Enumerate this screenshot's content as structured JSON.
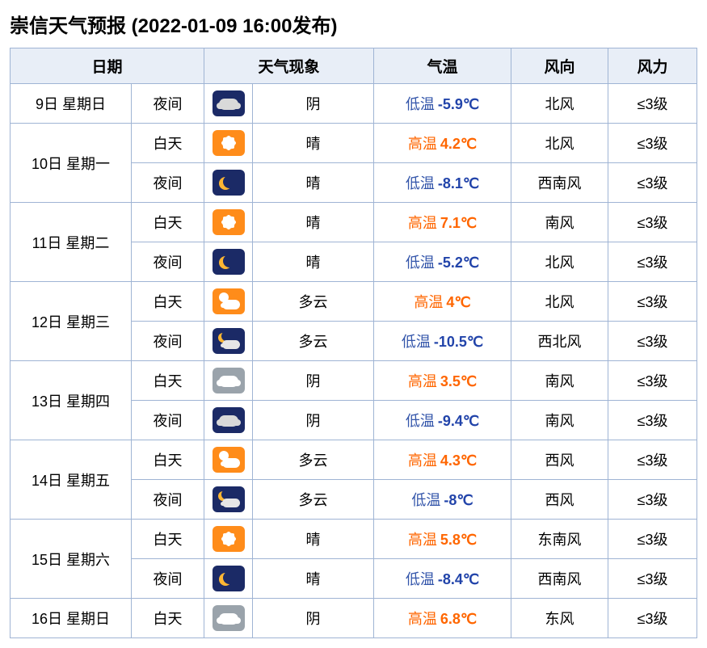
{
  "title": "崇信天气预报 (2022-01-09 16:00发布)",
  "headers": {
    "date": "日期",
    "phenomenon": "天气现象",
    "temperature": "气温",
    "wind_dir": "风向",
    "wind_power": "风力"
  },
  "colors": {
    "border": "#9fb4d4",
    "header_bg": "#e8eef7",
    "hi_label": "#ff6600",
    "hi_value": "#ff6600",
    "lo_label": "#3355aa",
    "lo_value": "#2244aa"
  },
  "labels": {
    "hi": "高温",
    "lo": "低温"
  },
  "days": [
    {
      "date": "9日 星期日",
      "rows": [
        {
          "period": "夜间",
          "icon": "overcast-night",
          "desc": "阴",
          "temp_kind": "lo",
          "temp": "-5.9℃",
          "wind": "北风",
          "power": "≤3级"
        }
      ]
    },
    {
      "date": "10日 星期一",
      "rows": [
        {
          "period": "白天",
          "icon": "sunny-day",
          "desc": "晴",
          "temp_kind": "hi",
          "temp": "4.2℃",
          "wind": "北风",
          "power": "≤3级"
        },
        {
          "period": "夜间",
          "icon": "clear-night",
          "desc": "晴",
          "temp_kind": "lo",
          "temp": "-8.1℃",
          "wind": "西南风",
          "power": "≤3级"
        }
      ]
    },
    {
      "date": "11日 星期二",
      "rows": [
        {
          "period": "白天",
          "icon": "sunny-day",
          "desc": "晴",
          "temp_kind": "hi",
          "temp": "7.1℃",
          "wind": "南风",
          "power": "≤3级"
        },
        {
          "period": "夜间",
          "icon": "clear-night",
          "desc": "晴",
          "temp_kind": "lo",
          "temp": "-5.2℃",
          "wind": "北风",
          "power": "≤3级"
        }
      ]
    },
    {
      "date": "12日 星期三",
      "rows": [
        {
          "period": "白天",
          "icon": "partly-day",
          "desc": "多云",
          "temp_kind": "hi",
          "temp": "4℃",
          "wind": "北风",
          "power": "≤3级"
        },
        {
          "period": "夜间",
          "icon": "partly-night",
          "desc": "多云",
          "temp_kind": "lo",
          "temp": "-10.5℃",
          "wind": "西北风",
          "power": "≤3级"
        }
      ]
    },
    {
      "date": "13日 星期四",
      "rows": [
        {
          "period": "白天",
          "icon": "overcast-gray",
          "desc": "阴",
          "temp_kind": "hi",
          "temp": "3.5℃",
          "wind": "南风",
          "power": "≤3级"
        },
        {
          "period": "夜间",
          "icon": "overcast-night",
          "desc": "阴",
          "temp_kind": "lo",
          "temp": "-9.4℃",
          "wind": "南风",
          "power": "≤3级"
        }
      ]
    },
    {
      "date": "14日 星期五",
      "rows": [
        {
          "period": "白天",
          "icon": "partly-day",
          "desc": "多云",
          "temp_kind": "hi",
          "temp": "4.3℃",
          "wind": "西风",
          "power": "≤3级"
        },
        {
          "period": "夜间",
          "icon": "partly-night",
          "desc": "多云",
          "temp_kind": "lo",
          "temp": "-8℃",
          "wind": "西风",
          "power": "≤3级"
        }
      ]
    },
    {
      "date": "15日 星期六",
      "rows": [
        {
          "period": "白天",
          "icon": "sunny-day",
          "desc": "晴",
          "temp_kind": "hi",
          "temp": "5.8℃",
          "wind": "东南风",
          "power": "≤3级"
        },
        {
          "period": "夜间",
          "icon": "clear-night",
          "desc": "晴",
          "temp_kind": "lo",
          "temp": "-8.4℃",
          "wind": "西南风",
          "power": "≤3级"
        }
      ]
    },
    {
      "date": "16日 星期日",
      "rows": [
        {
          "period": "白天",
          "icon": "overcast-gray",
          "desc": "阴",
          "temp_kind": "hi",
          "temp": "6.8℃",
          "wind": "东风",
          "power": "≤3级"
        }
      ]
    }
  ]
}
